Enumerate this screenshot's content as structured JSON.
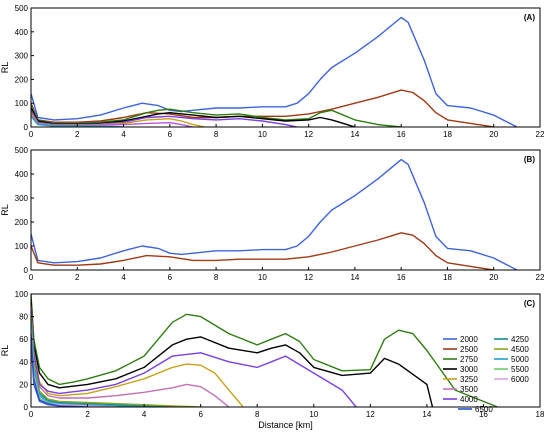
{
  "chart_data": [
    {
      "panel": "(A)",
      "type": "line",
      "xlabel": "",
      "ylabel": "RL",
      "xlim": [
        0,
        22
      ],
      "ylim": [
        0,
        500
      ],
      "xticks": [
        0,
        2,
        4,
        6,
        8,
        10,
        12,
        14,
        16,
        18,
        20,
        22
      ],
      "yticks": [
        0,
        100,
        200,
        300,
        400,
        500
      ],
      "grid": false,
      "series": [
        {
          "color": "#3e64d8",
          "x": [
            0,
            0.3,
            1,
            2,
            3,
            4,
            4.8,
            5.5,
            6,
            6.5,
            7,
            8,
            9,
            10,
            11,
            11.5,
            12,
            12.5,
            13,
            14,
            15,
            15.5,
            16,
            16.3,
            17,
            17.5,
            18,
            19,
            20,
            21
          ],
          "y": [
            140,
            40,
            30,
            35,
            50,
            80,
            100,
            90,
            70,
            65,
            70,
            80,
            80,
            85,
            85,
            100,
            140,
            200,
            250,
            310,
            380,
            420,
            460,
            440,
            280,
            140,
            90,
            80,
            50,
            0
          ]
        },
        {
          "color": "#9e3a14",
          "x": [
            0,
            0.3,
            1,
            2,
            3,
            4,
            5,
            6,
            7,
            8,
            9,
            10,
            11,
            12,
            13,
            14,
            15,
            15.5,
            16,
            16.5,
            17,
            17.5,
            18,
            19,
            20
          ],
          "y": [
            100,
            30,
            20,
            20,
            25,
            40,
            60,
            55,
            40,
            40,
            45,
            45,
            45,
            55,
            75,
            100,
            125,
            140,
            155,
            145,
            110,
            60,
            30,
            15,
            0
          ]
        },
        {
          "color": "#2f7d12",
          "x": [
            0,
            0.3,
            1,
            2,
            3,
            4,
            5,
            5.5,
            6,
            7,
            8,
            9,
            10,
            11,
            12,
            12.5,
            13,
            14,
            15,
            16
          ],
          "y": [
            90,
            30,
            15,
            15,
            20,
            30,
            60,
            70,
            75,
            60,
            50,
            55,
            40,
            30,
            35,
            60,
            70,
            30,
            10,
            0
          ]
        },
        {
          "color": "#000000",
          "x": [
            0,
            0.3,
            1,
            2,
            3,
            4,
            5,
            5.5,
            6,
            7,
            8,
            9,
            10,
            11,
            12,
            12.5,
            13,
            13.5,
            14
          ],
          "y": [
            80,
            25,
            12,
            12,
            15,
            25,
            45,
            55,
            60,
            50,
            40,
            45,
            35,
            25,
            30,
            40,
            30,
            15,
            0
          ]
        },
        {
          "color": "#7a3fe0",
          "x": [
            0,
            0.3,
            1,
            2,
            3,
            4,
            5,
            6,
            7,
            8,
            9,
            10,
            11,
            11.5
          ],
          "y": [
            70,
            20,
            10,
            10,
            12,
            20,
            40,
            45,
            35,
            30,
            35,
            25,
            10,
            0
          ]
        },
        {
          "color": "#c8a11a",
          "x": [
            0,
            0.3,
            1,
            2,
            3,
            4,
            5,
            6,
            6.5,
            7,
            7.5
          ],
          "y": [
            60,
            15,
            8,
            8,
            10,
            15,
            30,
            35,
            25,
            10,
            0
          ]
        },
        {
          "color": "#b35ad6",
          "x": [
            0,
            0.3,
            1,
            2,
            3,
            4,
            5,
            6,
            6.5,
            7
          ],
          "y": [
            50,
            12,
            6,
            6,
            8,
            10,
            15,
            18,
            10,
            0
          ]
        },
        {
          "color": "#1f9fd0",
          "x": [
            0,
            0.3,
            1,
            2,
            3,
            3.5,
            4
          ],
          "y": [
            45,
            10,
            4,
            4,
            3,
            2,
            0
          ]
        }
      ]
    },
    {
      "panel": "(B)",
      "type": "line",
      "xlabel": "",
      "ylabel": "RL",
      "xlim": [
        0,
        22
      ],
      "ylim": [
        0,
        500
      ],
      "xticks": [
        0,
        2,
        4,
        6,
        8,
        10,
        12,
        14,
        16,
        18,
        20,
        22
      ],
      "yticks": [
        0,
        100,
        200,
        300,
        400,
        500
      ],
      "grid": false,
      "series": [
        {
          "color": "#3e64d8",
          "x": [
            0,
            0.3,
            1,
            2,
            3,
            4,
            4.8,
            5.5,
            6,
            6.5,
            7,
            8,
            9,
            10,
            11,
            11.5,
            12,
            12.5,
            13,
            14,
            15,
            15.5,
            16,
            16.3,
            17,
            17.5,
            18,
            19,
            20,
            21
          ],
          "y": [
            150,
            40,
            30,
            35,
            50,
            80,
            100,
            90,
            70,
            65,
            70,
            80,
            80,
            85,
            85,
            100,
            140,
            200,
            250,
            310,
            380,
            420,
            460,
            440,
            280,
            140,
            90,
            80,
            50,
            0
          ]
        },
        {
          "color": "#9e3a14",
          "x": [
            0,
            0.3,
            1,
            2,
            3,
            4,
            5,
            6,
            7,
            8,
            9,
            10,
            11,
            12,
            13,
            14,
            15,
            15.5,
            16,
            16.5,
            17,
            17.5,
            18,
            19,
            20
          ],
          "y": [
            100,
            30,
            20,
            20,
            25,
            40,
            60,
            55,
            40,
            40,
            45,
            45,
            45,
            55,
            75,
            100,
            125,
            140,
            155,
            145,
            110,
            60,
            30,
            15,
            0
          ]
        }
      ]
    },
    {
      "panel": "(C)",
      "type": "line",
      "xlabel": "Distance [km]",
      "ylabel": "RL",
      "xlim": [
        0,
        18
      ],
      "ylim": [
        0,
        100
      ],
      "xticks": [
        0,
        2,
        4,
        6,
        8,
        10,
        12,
        14,
        16,
        18
      ],
      "yticks": [
        0,
        20,
        40,
        60,
        80,
        100
      ],
      "grid": false,
      "legend_position": "right",
      "series": [
        {
          "name": "2000",
          "color": "#3e64d8",
          "x": [
            0,
            0.1,
            0.3,
            0.6,
            1,
            2,
            3
          ],
          "y": [
            60,
            20,
            5,
            2,
            1,
            0.5,
            0
          ]
        },
        {
          "name": "2500",
          "color": "#9e3a14",
          "x": [
            0,
            0.1,
            0.3,
            0.6,
            1,
            2,
            3,
            4
          ],
          "y": [
            65,
            25,
            8,
            3,
            2,
            1,
            0.5,
            0
          ]
        },
        {
          "name": "2750",
          "color": "#2f7d12",
          "x": [
            0,
            0.1,
            0.3,
            0.6,
            1,
            1.5,
            2,
            3,
            4,
            5,
            5.5,
            6,
            7,
            8,
            8.5,
            9,
            9.5,
            10,
            11,
            12,
            12.5,
            13,
            13.5,
            14,
            15,
            16,
            16.5
          ],
          "y": [
            100,
            60,
            35,
            25,
            20,
            22,
            25,
            32,
            45,
            75,
            82,
            80,
            65,
            55,
            60,
            65,
            58,
            42,
            32,
            33,
            60,
            68,
            65,
            50,
            15,
            5,
            0
          ]
        },
        {
          "name": "3000",
          "color": "#000000",
          "x": [
            0,
            0.1,
            0.3,
            0.6,
            1,
            2,
            3,
            4,
            5,
            5.5,
            6,
            7,
            8,
            8.5,
            9,
            9.5,
            10,
            11,
            12,
            12.5,
            13,
            14,
            14.2
          ],
          "y": [
            95,
            55,
            30,
            20,
            17,
            20,
            25,
            35,
            55,
            60,
            62,
            52,
            48,
            52,
            55,
            48,
            35,
            28,
            30,
            43,
            38,
            20,
            0
          ]
        },
        {
          "name": "3250",
          "color": "#c8a11a",
          "x": [
            0,
            0.1,
            0.3,
            0.6,
            1,
            2,
            3,
            4,
            5,
            5.5,
            6,
            6.5,
            7,
            7.5
          ],
          "y": [
            90,
            50,
            22,
            12,
            10,
            12,
            18,
            25,
            35,
            38,
            37,
            30,
            15,
            0
          ]
        },
        {
          "name": "3500",
          "color": "#c46eb4",
          "x": [
            0,
            0.1,
            0.3,
            0.6,
            1,
            2,
            3,
            4,
            5,
            5.5,
            6,
            6.5,
            7
          ],
          "y": [
            85,
            45,
            18,
            10,
            8,
            8,
            10,
            13,
            17,
            20,
            18,
            10,
            0
          ]
        },
        {
          "name": "4000",
          "color": "#7a3fe0",
          "x": [
            0,
            0.1,
            0.3,
            0.6,
            1,
            2,
            3,
            4,
            5,
            6,
            7,
            8,
            8.5,
            9,
            10,
            11,
            11.5
          ],
          "y": [
            88,
            48,
            20,
            14,
            12,
            15,
            20,
            30,
            45,
            48,
            40,
            35,
            40,
            45,
            30,
            15,
            0
          ]
        },
        {
          "name": "4250",
          "color": "#1a8c8c",
          "x": [
            0,
            0.1,
            0.3,
            0.6,
            1,
            2,
            3,
            4,
            5
          ],
          "y": [
            80,
            38,
            12,
            6,
            4,
            3,
            2,
            1,
            0
          ]
        },
        {
          "name": "4500",
          "color": "#88a520",
          "x": [
            0,
            0.1,
            0.3,
            0.6,
            1,
            2,
            3,
            4,
            5,
            6
          ],
          "y": [
            82,
            40,
            14,
            7,
            5,
            4,
            3,
            2,
            1,
            0
          ]
        },
        {
          "name": "5000",
          "color": "#1f9fd0",
          "x": [
            0,
            0.1,
            0.3,
            0.6,
            1,
            2,
            3,
            4
          ],
          "y": [
            75,
            35,
            10,
            5,
            3,
            2,
            1,
            0
          ]
        },
        {
          "name": "5500",
          "color": "#6bd06b",
          "x": [
            0,
            0.1,
            0.3,
            0.6,
            1,
            2,
            3
          ],
          "y": [
            70,
            30,
            8,
            4,
            2,
            1,
            0
          ]
        },
        {
          "name": "6000",
          "color": "#d8a4e0",
          "x": [
            0,
            0.1,
            0.3,
            0.6,
            1,
            2,
            3
          ],
          "y": [
            68,
            28,
            7,
            3,
            2,
            1,
            0
          ]
        },
        {
          "name": "6500",
          "color": "#2255cc",
          "x": [
            0,
            0.1,
            0.3,
            0.6,
            1,
            2
          ],
          "y": [
            65,
            25,
            6,
            3,
            1,
            0
          ]
        }
      ]
    }
  ]
}
